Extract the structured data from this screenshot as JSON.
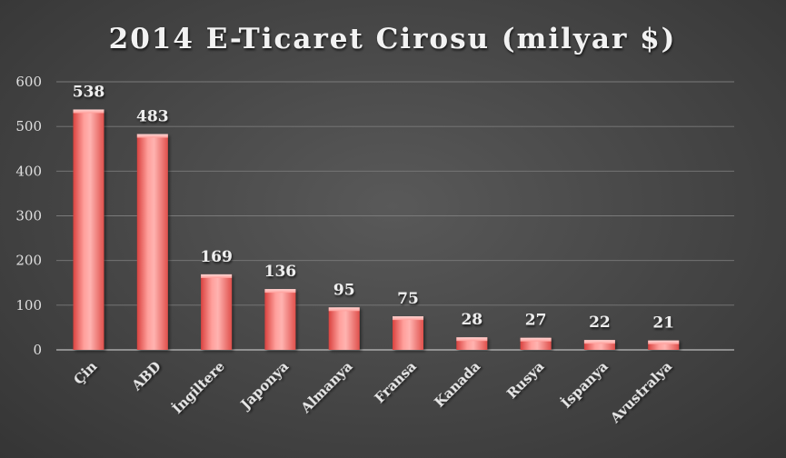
{
  "chart_data": {
    "type": "bar",
    "title": "2014 E-Ticaret Cirosu (milyar $)",
    "categories": [
      "Çin",
      "ABD",
      "İngiltere",
      "Japonya",
      "Almanya",
      "Fransa",
      "Kanada",
      "Rusya",
      "İspanya",
      "Avustralya"
    ],
    "values": [
      538,
      483,
      169,
      136,
      95,
      75,
      28,
      27,
      22,
      21
    ],
    "data_labels": [
      "538",
      "483",
      "169",
      "136",
      "95",
      "75",
      "28",
      "27",
      "22",
      "21"
    ],
    "ylim": [
      0,
      600
    ],
    "yticks": [
      0,
      100,
      200,
      300,
      400,
      500,
      600
    ],
    "ytick_labels": [
      "0",
      "100",
      "200",
      "300",
      "400",
      "500",
      "600"
    ],
    "grid": true,
    "legend": "none",
    "bar_color": "#e8524f",
    "bar_highlight": "#ffb3b0"
  }
}
